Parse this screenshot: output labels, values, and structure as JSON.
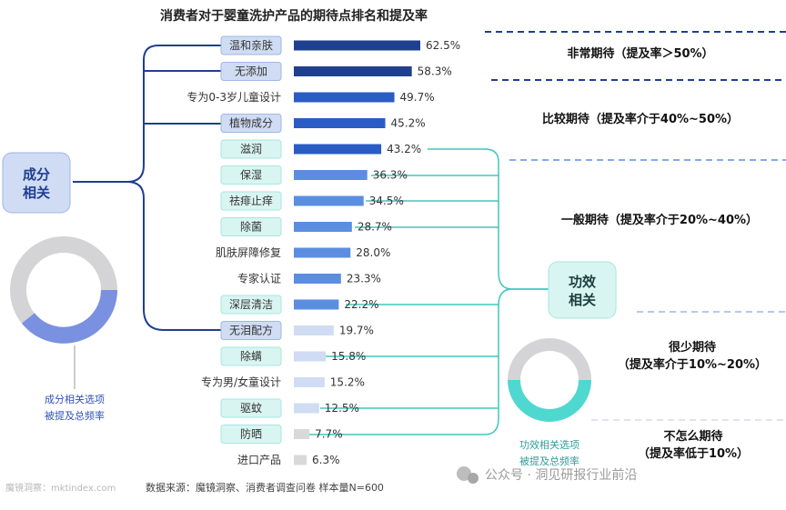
{
  "title": "消费者对于婴童洗护产品的期待点排名和提及率",
  "chart_data": {
    "type": "bar",
    "orientation": "horizontal",
    "title": "消费者对于婴童洗护产品的期待点排名和提及率",
    "value_unit": "%",
    "categories": [
      "温和亲肤",
      "无添加",
      "专为0-3岁儿童设计",
      "植物成分",
      "滋润",
      "保湿",
      "祛痱止痒",
      "除菌",
      "肌肤屏障修复",
      "专家认证",
      "深层清洁",
      "无泪配方",
      "除螨",
      "专为男/女童设计",
      "驱蚊",
      "防晒",
      "进口产品"
    ],
    "values": [
      62.5,
      58.3,
      49.7,
      45.2,
      43.2,
      36.3,
      34.5,
      28.7,
      28.0,
      23.3,
      22.2,
      19.7,
      15.8,
      15.2,
      12.5,
      7.7,
      6.3
    ],
    "value_labels": [
      "62.5%",
      "58.3%",
      "49.7%",
      "45.2%",
      "43.2%",
      "36.3%",
      "34.5%",
      "28.7%",
      "28.0%",
      "23.3%",
      "22.2%",
      "19.7%",
      "15.8%",
      "15.2%",
      "12.5%",
      "7.7%",
      "6.3%"
    ],
    "xlim": [
      0,
      62.5
    ],
    "ingredient_related": [
      "温和亲肤",
      "无添加",
      "植物成分",
      "无泪配方"
    ],
    "efficacy_related": [
      "滋润",
      "保湿",
      "祛痱止痒",
      "除菌",
      "深层清洁",
      "除螨",
      "驱蚊",
      "防晒"
    ],
    "tiers": [
      {
        "label": "非常期待（提及率＞50%）",
        "min": 50,
        "color": "#1f3f8f"
      },
      {
        "label": "比较期待（提及率介于40%~50%）",
        "min": 40,
        "color": "#2a5cc4"
      },
      {
        "label": "一般期待（提及率介于20%~40%）",
        "min": 20,
        "color": "#5b8ee0"
      },
      {
        "label": "很少期待（提及率介于10%~20%）",
        "min": 10,
        "color": "#cfdcf3"
      },
      {
        "label": "不怎么期待（提及率低于10%）",
        "min": 0,
        "color": "#d9d9d9"
      }
    ]
  },
  "groups": {
    "ingredient": {
      "label_line1": "成分",
      "label_line2": "相关",
      "donut_caption_line1": "成分相关选项",
      "donut_caption_line2": "被提及总频率",
      "color": "#7a90e0"
    },
    "efficacy": {
      "label_line1": "功效",
      "label_line2": "相关",
      "donut_caption_line1": "功效相关选项",
      "donut_caption_line2": "被提及总频率",
      "color": "#4fd8cf"
    }
  },
  "tier_labels": {
    "very": "非常期待（提及率＞50%）",
    "fairly": "比较期待（提及率介于40%~50%）",
    "general": "一般期待（提及率介于20%~40%）",
    "rarely_line1": "很少期待",
    "rarely_line2": "（提及率介于10%~20%）",
    "not_line1": "不怎么期待",
    "not_line2": "（提及率低于10%）"
  },
  "footer": {
    "watermark": "魔镜洞察：mktindex.com",
    "source": "数据来源：魔镜洞察、消费者调查问卷 样本量N=600",
    "wechat": "公众号 · 洞见研报行业前沿"
  },
  "colors": {
    "ingredient_line": "#1f3f8f",
    "efficacy_line": "#3fc7bd",
    "label_box": "#cfdcf3",
    "label_box_green": "#d9f5f2"
  }
}
